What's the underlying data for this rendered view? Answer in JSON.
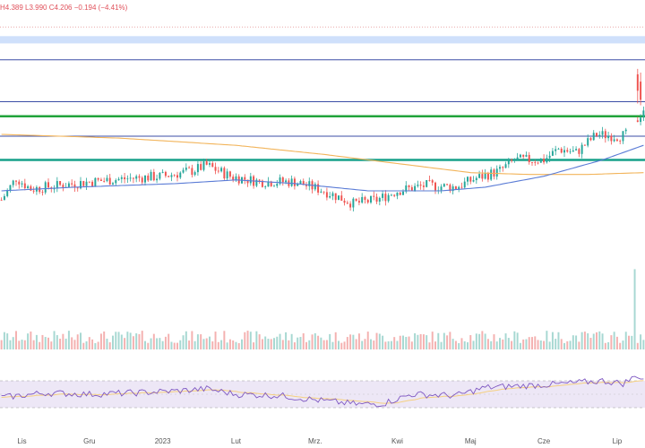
{
  "header": {
    "ohlc_text": "H4.389  L3.990  C4.206  −0.194  (−4.41%)"
  },
  "colors": {
    "up": "#26a69a",
    "down": "#ef5350",
    "vol_up": "#a7d8d2",
    "vol_down": "#f4b1b0",
    "ma_fast": "#5b7cd6",
    "ma_slow": "#f2b45a",
    "blue_line": "#3b4ea6",
    "green_line": "#21a33b",
    "teal_line": "#17a08a",
    "zone": "#cfe0fb",
    "rsi_line": "#7e57c2",
    "rsi_band": "#ede7f6",
    "rsi_ma": "#f5d080"
  },
  "chart_data": {
    "type": "candlestick",
    "x_tick_labels": [
      "Lis",
      "Gru",
      "2023",
      "Lut",
      "Mrz.",
      "Kwi",
      "Maj",
      "Cze",
      "Lip"
    ],
    "x_tick_index": [
      7,
      30,
      55,
      80,
      107,
      135,
      160,
      185,
      210
    ],
    "ylim": [
      2.9,
      4.5
    ],
    "horizontal_levels": [
      {
        "kind": "dotted",
        "value": 4.45
      },
      {
        "kind": "zone",
        "from": 4.36,
        "to": 4.4
      },
      {
        "kind": "line",
        "value": 4.27
      },
      {
        "kind": "line",
        "value": 4.04
      },
      {
        "kind": "thick-green",
        "value": 3.96
      },
      {
        "kind": "line",
        "value": 3.85
      },
      {
        "kind": "thick-teal",
        "value": 3.72
      }
    ],
    "price_anchors": [
      [
        0,
        3.5
      ],
      [
        5,
        3.62
      ],
      [
        10,
        3.56
      ],
      [
        20,
        3.58
      ],
      [
        30,
        3.6
      ],
      [
        45,
        3.62
      ],
      [
        55,
        3.63
      ],
      [
        65,
        3.66
      ],
      [
        70,
        3.69
      ],
      [
        78,
        3.63
      ],
      [
        88,
        3.6
      ],
      [
        100,
        3.6
      ],
      [
        110,
        3.55
      ],
      [
        120,
        3.48
      ],
      [
        128,
        3.5
      ],
      [
        135,
        3.55
      ],
      [
        145,
        3.58
      ],
      [
        155,
        3.57
      ],
      [
        162,
        3.62
      ],
      [
        170,
        3.66
      ],
      [
        175,
        3.72
      ],
      [
        185,
        3.72
      ],
      [
        190,
        3.78
      ],
      [
        196,
        3.76
      ],
      [
        203,
        3.86
      ],
      [
        210,
        3.85
      ],
      [
        214,
        3.86
      ],
      [
        219,
        4.0
      ]
    ],
    "ma_fast_anchors": [
      [
        0,
        3.55
      ],
      [
        25,
        3.57
      ],
      [
        60,
        3.59
      ],
      [
        80,
        3.61
      ],
      [
        100,
        3.59
      ],
      [
        125,
        3.55
      ],
      [
        150,
        3.55
      ],
      [
        165,
        3.57
      ],
      [
        185,
        3.63
      ],
      [
        205,
        3.72
      ],
      [
        219,
        3.8
      ]
    ],
    "ma_slow_anchors": [
      [
        0,
        3.86
      ],
      [
        40,
        3.84
      ],
      [
        80,
        3.8
      ],
      [
        110,
        3.75
      ],
      [
        140,
        3.69
      ],
      [
        160,
        3.65
      ],
      [
        180,
        3.64
      ],
      [
        200,
        3.64
      ],
      [
        219,
        3.65
      ]
    ],
    "rsi_levels": [
      70,
      30
    ],
    "rsi_anchors": [
      [
        0,
        45
      ],
      [
        15,
        52
      ],
      [
        30,
        50
      ],
      [
        45,
        52
      ],
      [
        60,
        55
      ],
      [
        70,
        58
      ],
      [
        80,
        50
      ],
      [
        95,
        48
      ],
      [
        110,
        40
      ],
      [
        122,
        35
      ],
      [
        130,
        36
      ],
      [
        140,
        50
      ],
      [
        155,
        48
      ],
      [
        165,
        60
      ],
      [
        175,
        62
      ],
      [
        190,
        65
      ],
      [
        205,
        70
      ],
      [
        212,
        66
      ],
      [
        217,
        78
      ],
      [
        219,
        72
      ]
    ]
  }
}
